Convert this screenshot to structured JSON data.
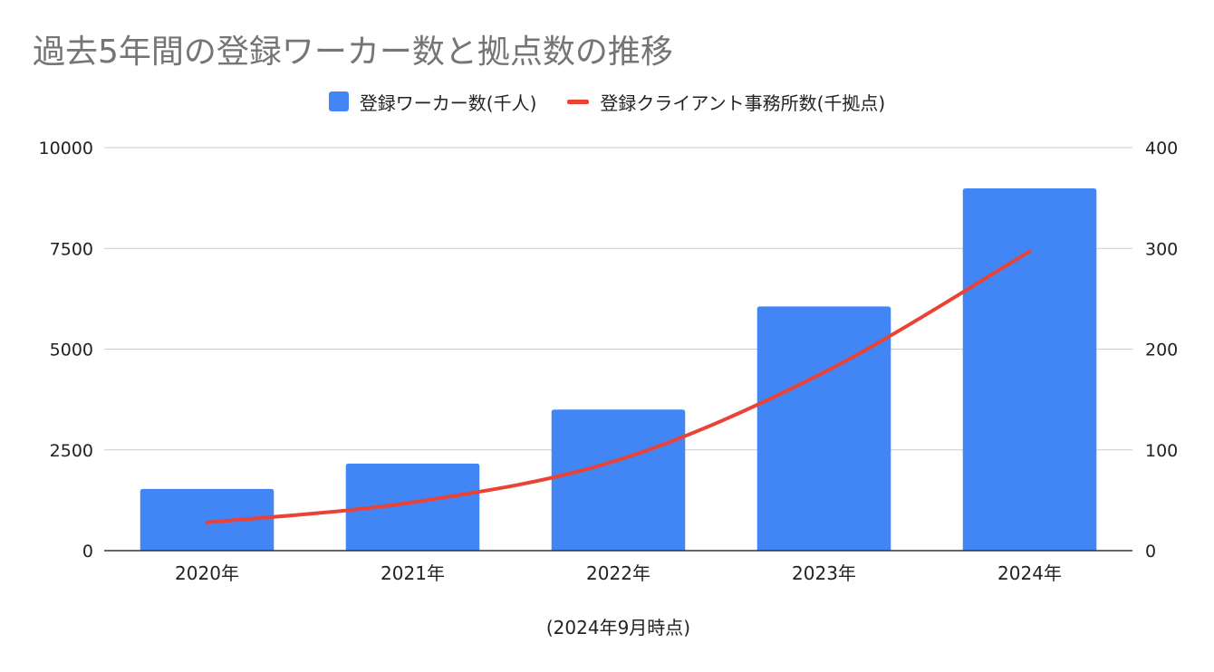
{
  "chart_data": {
    "type": "bar",
    "title": "過去5年間の登録ワーカー数と拠点数の推移",
    "xlabel": "(2024年9月時点)",
    "categories": [
      "2020年",
      "2021年",
      "2022年",
      "2023年",
      "2024年"
    ],
    "y_left": {
      "ylim": [
        0,
        10000
      ],
      "ticks": [
        0,
        2500,
        5000,
        7500,
        10000
      ]
    },
    "y_right": {
      "ylim": [
        0,
        400
      ],
      "ticks": [
        0,
        100,
        200,
        300,
        400
      ]
    },
    "grid": true,
    "legend_position": "top",
    "series": [
      {
        "name": "登録ワーカー数(千人)",
        "type": "bar",
        "axis": "left",
        "color": "#4285F4",
        "values": [
          1530,
          2160,
          3500,
          6060,
          8990
        ]
      },
      {
        "name": "登録クライアント事務所数(千拠点)",
        "type": "line",
        "axis": "right",
        "color": "#EA4335",
        "values": [
          28,
          48,
          90,
          177,
          297
        ]
      }
    ]
  }
}
